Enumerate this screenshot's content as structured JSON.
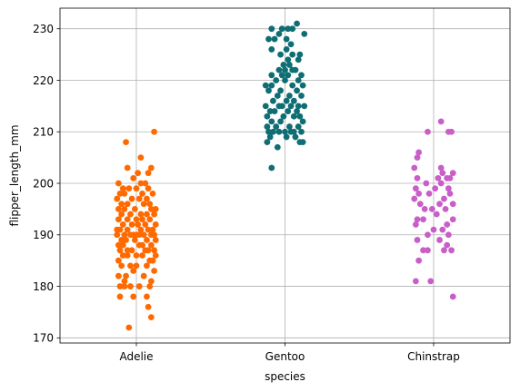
{
  "chart_data": {
    "type": "scatter",
    "xlabel": "species",
    "ylabel": "flipper_length_mm",
    "categories": [
      "Adelie",
      "Gentoo",
      "Chinstrap"
    ],
    "ylim": [
      169,
      234
    ],
    "yticks": [
      170,
      180,
      190,
      200,
      210,
      220,
      230
    ],
    "grid": true,
    "series": [
      {
        "category": "Adelie",
        "color": "#ff6a00",
        "points": [
          [
            -0.05,
            172
          ],
          [
            0.1,
            174
          ],
          [
            0.08,
            176
          ],
          [
            -0.02,
            178
          ],
          [
            -0.11,
            178
          ],
          [
            0.07,
            178
          ],
          [
            0.02,
            180
          ],
          [
            -0.11,
            180
          ],
          [
            -0.08,
            180
          ],
          [
            0.09,
            180
          ],
          [
            -0.04,
            180
          ],
          [
            0.1,
            181
          ],
          [
            -0.08,
            181
          ],
          [
            -0.12,
            182
          ],
          [
            -0.07,
            182
          ],
          [
            0.05,
            182
          ],
          [
            0.12,
            183
          ],
          [
            -0.02,
            183
          ],
          [
            0.0,
            184
          ],
          [
            -0.1,
            184
          ],
          [
            0.07,
            184
          ],
          [
            -0.04,
            184
          ],
          [
            0.09,
            185
          ],
          [
            -0.12,
            185
          ],
          [
            0.11,
            185
          ],
          [
            -0.06,
            186
          ],
          [
            0.04,
            186
          ],
          [
            0.13,
            186
          ],
          [
            -0.09,
            186
          ],
          [
            0.0,
            186
          ],
          [
            0.08,
            187
          ],
          [
            -0.03,
            187
          ],
          [
            -0.11,
            187
          ],
          [
            0.12,
            187
          ],
          [
            0.06,
            187
          ],
          [
            -0.06,
            187
          ],
          [
            0.02,
            188
          ],
          [
            -0.09,
            188
          ],
          [
            0.1,
            188
          ],
          [
            -0.12,
            188
          ],
          [
            0.04,
            188
          ],
          [
            -0.01,
            189
          ],
          [
            0.13,
            189
          ],
          [
            -0.07,
            189
          ],
          [
            0.07,
            189
          ],
          [
            -0.1,
            189
          ],
          [
            0.02,
            190
          ],
          [
            -0.04,
            190
          ],
          [
            0.1,
            190
          ],
          [
            -0.13,
            190
          ],
          [
            0.05,
            190
          ],
          [
            -0.08,
            190
          ],
          [
            0.12,
            190
          ],
          [
            0.0,
            190
          ],
          [
            -0.02,
            190
          ],
          [
            -0.11,
            191
          ],
          [
            0.08,
            191
          ],
          [
            0.03,
            191
          ],
          [
            -0.06,
            191
          ],
          [
            0.11,
            191
          ],
          [
            -0.13,
            191
          ],
          [
            0.01,
            192
          ],
          [
            -0.09,
            192
          ],
          [
            0.06,
            192
          ],
          [
            0.13,
            192
          ],
          [
            -0.03,
            192
          ],
          [
            0.09,
            193
          ],
          [
            -0.12,
            193
          ],
          [
            0.04,
            193
          ],
          [
            -0.06,
            193
          ],
          [
            0.0,
            193
          ],
          [
            0.12,
            194
          ],
          [
            -0.1,
            194
          ],
          [
            0.07,
            194
          ],
          [
            -0.04,
            194
          ],
          [
            0.03,
            194
          ],
          [
            -0.08,
            195
          ],
          [
            0.1,
            195
          ],
          [
            -0.01,
            195
          ],
          [
            0.13,
            195
          ],
          [
            -0.12,
            195
          ],
          [
            0.05,
            196
          ],
          [
            -0.06,
            196
          ],
          [
            0.09,
            196
          ],
          [
            -0.1,
            196
          ],
          [
            0.02,
            197
          ],
          [
            -0.13,
            197
          ],
          [
            0.07,
            197
          ],
          [
            -0.03,
            197
          ],
          [
            0.11,
            198
          ],
          [
            -0.08,
            198
          ],
          [
            0.04,
            198
          ],
          [
            -0.11,
            198
          ],
          [
            0.0,
            199
          ],
          [
            0.08,
            199
          ],
          [
            -0.05,
            199
          ],
          [
            -0.09,
            199
          ],
          [
            0.03,
            200
          ],
          [
            -0.12,
            200
          ],
          [
            0.06,
            200
          ],
          [
            -0.02,
            201
          ],
          [
            0.01,
            202
          ],
          [
            0.08,
            202
          ],
          [
            -0.06,
            203
          ],
          [
            0.1,
            203
          ],
          [
            0.03,
            205
          ],
          [
            -0.07,
            208
          ],
          [
            0.12,
            210
          ]
        ]
      },
      {
        "category": "Gentoo",
        "color": "#0e6e73",
        "points": [
          [
            -0.09,
            203
          ],
          [
            -0.05,
            207
          ],
          [
            0.12,
            208
          ],
          [
            0.1,
            208
          ],
          [
            -0.12,
            208
          ],
          [
            -0.1,
            209
          ],
          [
            0.01,
            209
          ],
          [
            0.07,
            209
          ],
          [
            -0.04,
            210
          ],
          [
            0.11,
            210
          ],
          [
            -0.08,
            210
          ],
          [
            0.04,
            210
          ],
          [
            0.06,
            210
          ],
          [
            -0.11,
            210
          ],
          [
            0.0,
            210
          ],
          [
            -0.06,
            211
          ],
          [
            0.09,
            211
          ],
          [
            -0.12,
            211
          ],
          [
            0.03,
            211
          ],
          [
            -0.03,
            212
          ],
          [
            0.12,
            212
          ],
          [
            -0.09,
            212
          ],
          [
            0.06,
            213
          ],
          [
            -0.01,
            213
          ],
          [
            0.1,
            213
          ],
          [
            -0.12,
            213
          ],
          [
            0.02,
            214
          ],
          [
            -0.07,
            214
          ],
          [
            0.08,
            214
          ],
          [
            -0.1,
            214
          ],
          [
            0.04,
            215
          ],
          [
            0.13,
            215
          ],
          [
            -0.04,
            215
          ],
          [
            -0.02,
            215
          ],
          [
            0.09,
            215
          ],
          [
            -0.13,
            215
          ],
          [
            0.06,
            216
          ],
          [
            -0.08,
            216
          ],
          [
            0.01,
            216
          ],
          [
            0.11,
            217
          ],
          [
            -0.05,
            217
          ],
          [
            0.03,
            217
          ],
          [
            -0.11,
            218
          ],
          [
            0.08,
            218
          ],
          [
            -0.03,
            218
          ],
          [
            0.12,
            219
          ],
          [
            -0.09,
            219
          ],
          [
            0.05,
            219
          ],
          [
            -0.13,
            219
          ],
          [
            0.0,
            220
          ],
          [
            -0.06,
            220
          ],
          [
            0.09,
            220
          ],
          [
            0.02,
            221
          ],
          [
            -0.02,
            221
          ],
          [
            0.11,
            221
          ],
          [
            -0.09,
            221
          ],
          [
            0.05,
            222
          ],
          [
            0.0,
            222
          ],
          [
            -0.04,
            222
          ],
          [
            0.07,
            222
          ],
          [
            0.03,
            223
          ],
          [
            -0.01,
            223
          ],
          [
            0.09,
            224
          ],
          [
            0.02,
            224
          ],
          [
            -0.03,
            225
          ],
          [
            0.05,
            225
          ],
          [
            0.1,
            225
          ],
          [
            0.01,
            226
          ],
          [
            -0.09,
            226
          ],
          [
            0.04,
            227
          ],
          [
            -0.11,
            228
          ],
          [
            -0.07,
            228
          ],
          [
            0.01,
            228
          ],
          [
            0.13,
            229
          ],
          [
            -0.04,
            229
          ],
          [
            -0.09,
            230
          ],
          [
            0.05,
            230
          ],
          [
            -0.02,
            230
          ],
          [
            0.02,
            230
          ],
          [
            0.08,
            231
          ]
        ]
      },
      {
        "category": "Chinstrap",
        "color": "#c95ec9",
        "points": [
          [
            0.13,
            178
          ],
          [
            -0.12,
            181
          ],
          [
            -0.02,
            181
          ],
          [
            -0.1,
            185
          ],
          [
            0.12,
            187
          ],
          [
            -0.04,
            187
          ],
          [
            0.07,
            187
          ],
          [
            -0.07,
            187
          ],
          [
            0.09,
            188
          ],
          [
            -0.11,
            189
          ],
          [
            0.04,
            189
          ],
          [
            0.1,
            190
          ],
          [
            -0.04,
            190
          ],
          [
            0.0,
            191
          ],
          [
            0.06,
            191
          ],
          [
            -0.12,
            192
          ],
          [
            0.09,
            192
          ],
          [
            -0.07,
            193
          ],
          [
            0.13,
            193
          ],
          [
            -0.11,
            193
          ],
          [
            0.02,
            194
          ],
          [
            -0.06,
            195
          ],
          [
            0.08,
            195
          ],
          [
            -0.01,
            195
          ],
          [
            0.13,
            196
          ],
          [
            -0.09,
            196
          ],
          [
            0.04,
            196
          ],
          [
            -0.13,
            197
          ],
          [
            0.07,
            197
          ],
          [
            -0.03,
            198
          ],
          [
            0.11,
            198
          ],
          [
            -0.1,
            198
          ],
          [
            0.01,
            199
          ],
          [
            0.1,
            199
          ],
          [
            -0.12,
            199
          ],
          [
            0.05,
            200
          ],
          [
            -0.05,
            200
          ],
          [
            0.11,
            201
          ],
          [
            -0.11,
            201
          ],
          [
            0.03,
            201
          ],
          [
            0.09,
            201
          ],
          [
            0.13,
            202
          ],
          [
            0.06,
            202
          ],
          [
            -0.13,
            203
          ],
          [
            0.05,
            203
          ],
          [
            -0.11,
            205
          ],
          [
            -0.1,
            206
          ],
          [
            -0.04,
            210
          ],
          [
            0.1,
            210
          ],
          [
            0.05,
            212
          ],
          [
            0.12,
            210
          ]
        ]
      }
    ]
  }
}
